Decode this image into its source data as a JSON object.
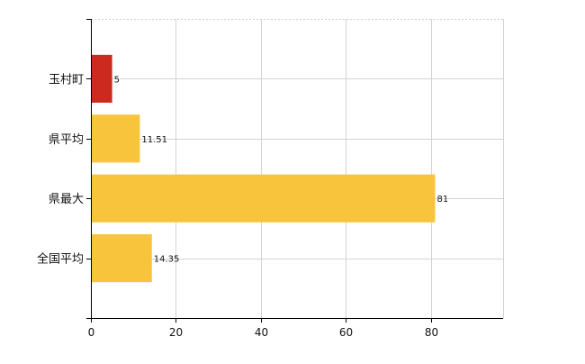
{
  "chart_data": {
    "type": "bar",
    "orientation": "horizontal",
    "categories": [
      "玉村町",
      "県平均",
      "県最大",
      "全国平均"
    ],
    "values": [
      5,
      11.51,
      81,
      14.35
    ],
    "value_labels": [
      "5",
      "11.51",
      "81",
      "14.35"
    ],
    "bar_colors": [
      "#cc2a1e",
      "#f8c43c",
      "#f8c43c",
      "#f8c43c"
    ],
    "xlim": [
      0,
      97
    ],
    "x_ticks": [
      0,
      20,
      40,
      60,
      80
    ],
    "x_tick_labels": [
      "0",
      "20",
      "40",
      "60",
      "80"
    ],
    "grid": true,
    "title": "",
    "xlabel": "",
    "ylabel": ""
  }
}
